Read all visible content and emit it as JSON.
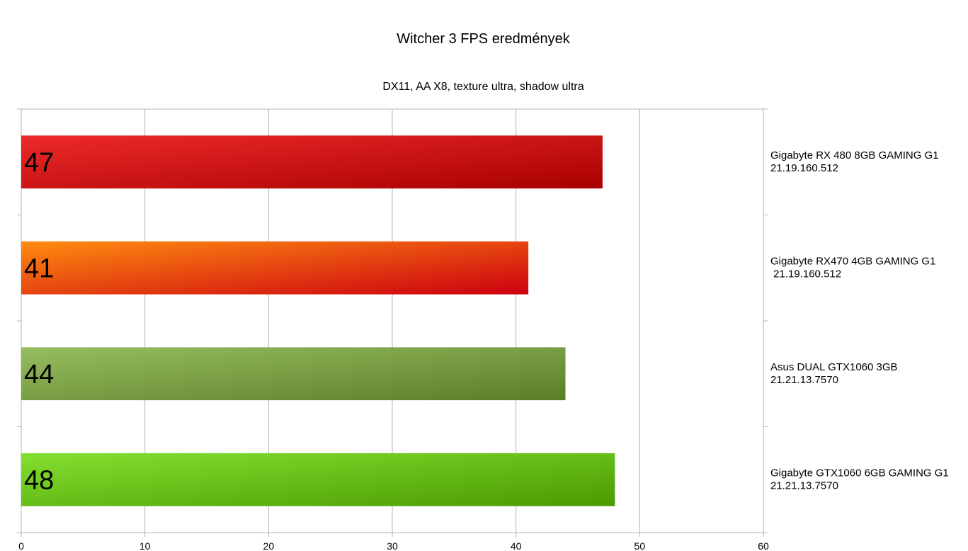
{
  "chart_data": {
    "type": "bar",
    "orientation": "horizontal",
    "title": "Witcher 3 FPS eredmények",
    "subtitle": "DX11, AA X8, texture ultra, shadow ultra",
    "categories": [
      [
        "Gigabyte RX 480 8GB GAMING G1",
        "21.19.160.512"
      ],
      [
        "Gigabyte RX470 4GB GAMING G1",
        " 21.19.160.512"
      ],
      [
        "Asus DUAL GTX1060 3GB",
        "21.21.13.7570"
      ],
      [
        "Gigabyte GTX1060 6GB GAMING G1",
        "21.21.13.7570"
      ]
    ],
    "values": [
      47,
      41,
      44,
      48
    ],
    "data_labels": [
      "47",
      "41",
      "44",
      "48"
    ],
    "xlim": [
      0,
      60
    ],
    "xticks": [
      "0",
      "10",
      "20",
      "30",
      "40",
      "50",
      "60"
    ],
    "grid": true,
    "category_axis_side": "right",
    "bar_colors": [
      [
        "#ee2a2a",
        "#a80000"
      ],
      [
        "#ff8c10",
        "#cc0010"
      ],
      [
        "#97bd60",
        "#5a7e28"
      ],
      [
        "#84e030",
        "#4a9a00"
      ]
    ]
  }
}
